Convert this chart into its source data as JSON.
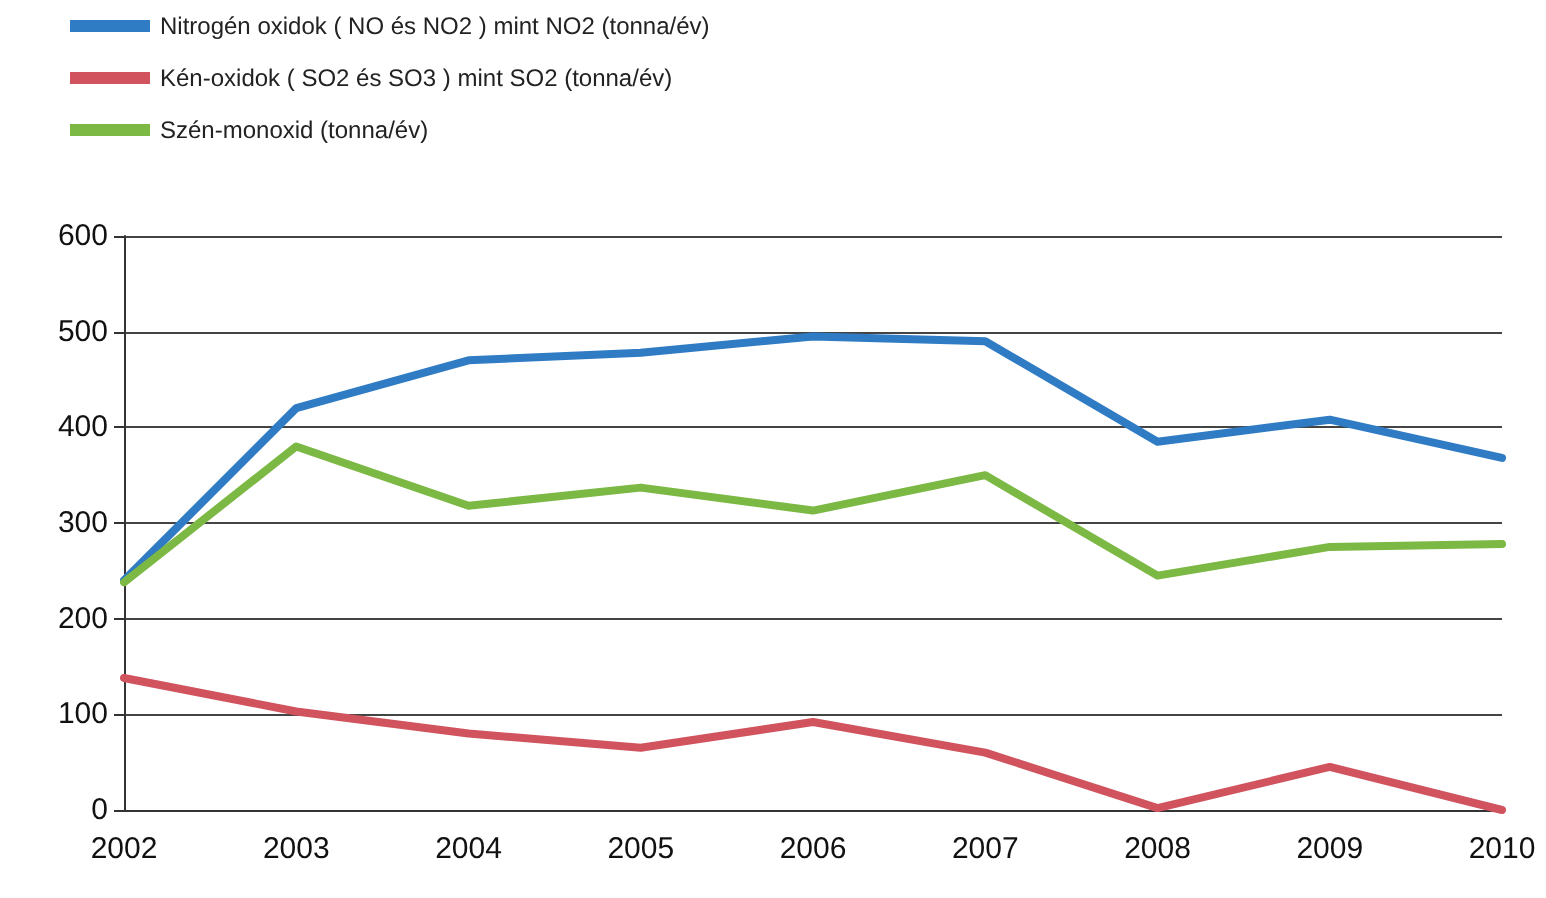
{
  "chart_data": {
    "type": "line",
    "categories": [
      "2002",
      "2003",
      "2004",
      "2005",
      "2006",
      "2007",
      "2008",
      "2009",
      "2010"
    ],
    "series": [
      {
        "name": "Nitrogén oxidok ( NO és NO2 ) mint NO2 (tonna/év)",
        "color": "#2f7bc4",
        "values": [
          240,
          420,
          470,
          478,
          495,
          490,
          385,
          408,
          368
        ]
      },
      {
        "name": "Kén-oxidok ( SO2 és SO3 ) mint SO2 (tonna/év)",
        "color": "#d0535e",
        "values": [
          138,
          103,
          80,
          65,
          92,
          60,
          2,
          45,
          0
        ]
      },
      {
        "name": "Szén-monoxid (tonna/év)",
        "color": "#7cb844",
        "values": [
          238,
          380,
          318,
          337,
          313,
          350,
          245,
          275,
          278
        ]
      }
    ],
    "ylim": [
      0,
      600
    ],
    "yticks": [
      0,
      100,
      200,
      300,
      400,
      500,
      600
    ],
    "grid": "y",
    "legend": "top left",
    "marker": "none",
    "line_style": "solid"
  }
}
